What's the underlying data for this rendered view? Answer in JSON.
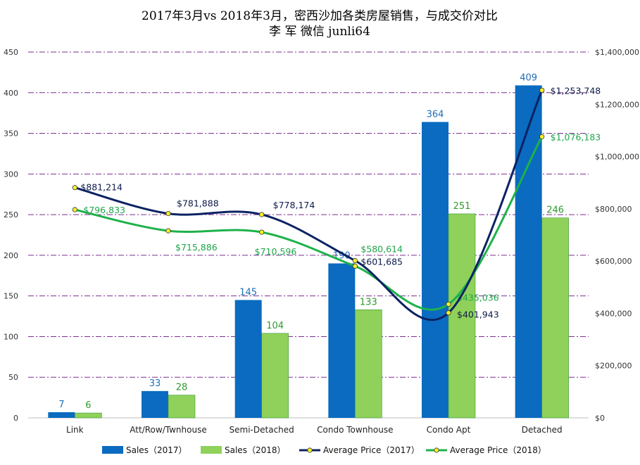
{
  "chart_data": {
    "type": "bar",
    "title": "2017年3月vs 2018年3月，密西沙加各类房屋销售，与成交价对比",
    "subtitle": "李 军  微信 junli64",
    "categories": [
      "Link",
      "Att/Row/Twnhouse",
      "Semi-Detached",
      "Condo Townhouse",
      "Condo Apt",
      "Detached"
    ],
    "left_axis": {
      "min": 0,
      "max": 450,
      "step": 50,
      "ticks": [
        "0",
        "50",
        "100",
        "150",
        "200",
        "250",
        "300",
        "350",
        "400",
        "450"
      ]
    },
    "right_axis": {
      "min": 0,
      "max": 1400000,
      "step": 200000,
      "ticks": [
        "$0",
        "$200,000",
        "$400,000",
        "$600,000",
        "$800,000",
        "$1,000,000",
        "$1,200,000",
        "$1,400,000"
      ]
    },
    "grid": true,
    "legend_position": "bottom",
    "series": [
      {
        "name": "Sales（2017）",
        "kind": "bar",
        "axis": "left",
        "color": "#0a6bc0",
        "values": [
          7,
          33,
          145,
          190,
          364,
          409
        ],
        "labels": [
          "7",
          "33",
          "145",
          "190",
          "364",
          "409"
        ]
      },
      {
        "name": "Sales（2018）",
        "kind": "bar",
        "axis": "left",
        "color": "#8fd15a",
        "values": [
          6,
          28,
          104,
          133,
          251,
          246
        ],
        "labels": [
          "6",
          "28",
          "104",
          "133",
          "251",
          "246"
        ]
      },
      {
        "name": "Average Price（2017）",
        "kind": "line",
        "axis": "right",
        "color": "#0b2263",
        "values": [
          881214,
          781888,
          778174,
          601685,
          401943,
          1253748
        ],
        "labels": [
          "$881,214",
          "$781,888",
          "$778,174",
          "$601,685",
          "$401,943",
          "$1,253,748"
        ]
      },
      {
        "name": "Average Price（2018）",
        "kind": "line",
        "axis": "right",
        "color": "#1db24a",
        "values": [
          796833,
          715886,
          710596,
          580614,
          435036,
          1076183
        ],
        "labels": [
          "$796,833",
          "$715,886",
          "$710,596",
          "$580,614",
          "$435,036",
          "$1,076,183"
        ]
      }
    ]
  }
}
